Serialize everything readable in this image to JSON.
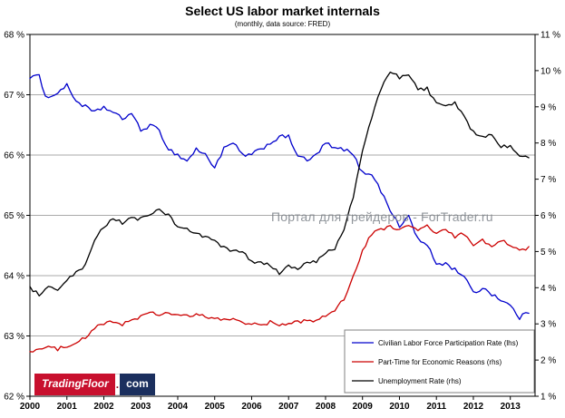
{
  "watermark": "Портал для трейдеров - ForTrader.ru",
  "logo": {
    "name": "TradingFloor",
    "dot": ".",
    "tld": "com"
  },
  "chart_data": {
    "type": "line",
    "title": "Select US labor market internals",
    "subtitle": "(monthly, data source: FRED)",
    "xlabel": "",
    "ylabel": "",
    "grid": true,
    "legend_position": "bottom-right-inside",
    "x_range": [
      2000,
      2013.67
    ],
    "x_ticks": [
      2000,
      2001,
      2002,
      2003,
      2004,
      2005,
      2006,
      2007,
      2008,
      2009,
      2010,
      2011,
      2012,
      2013
    ],
    "left_axis": {
      "min": 62,
      "max": 68,
      "step": 1,
      "suffix": " %"
    },
    "right_axis": {
      "min": 1,
      "max": 11,
      "step": 1,
      "suffix": " %"
    },
    "series": [
      {
        "name": "Civilian Labor Force Participation Rate (lhs)",
        "color": "#0000cc",
        "axis": "left",
        "points": [
          [
            2000.0,
            67.3
          ],
          [
            2000.25,
            67.3
          ],
          [
            2000.42,
            67.0
          ],
          [
            2000.58,
            66.95
          ],
          [
            2000.75,
            67.05
          ],
          [
            2001.0,
            67.15
          ],
          [
            2001.25,
            66.9
          ],
          [
            2001.5,
            66.8
          ],
          [
            2001.75,
            66.7
          ],
          [
            2002.0,
            66.8
          ],
          [
            2002.25,
            66.7
          ],
          [
            2002.5,
            66.6
          ],
          [
            2002.75,
            66.7
          ],
          [
            2003.0,
            66.4
          ],
          [
            2003.25,
            66.5
          ],
          [
            2003.5,
            66.4
          ],
          [
            2003.75,
            66.1
          ],
          [
            2004.0,
            66.0
          ],
          [
            2004.25,
            65.9
          ],
          [
            2004.5,
            66.1
          ],
          [
            2004.75,
            66.0
          ],
          [
            2005.0,
            65.8
          ],
          [
            2005.25,
            66.1
          ],
          [
            2005.5,
            66.2
          ],
          [
            2005.75,
            66.0
          ],
          [
            2006.0,
            66.0
          ],
          [
            2006.25,
            66.1
          ],
          [
            2006.5,
            66.2
          ],
          [
            2006.75,
            66.3
          ],
          [
            2007.0,
            66.3
          ],
          [
            2007.25,
            66.0
          ],
          [
            2007.5,
            65.9
          ],
          [
            2007.75,
            66.0
          ],
          [
            2008.0,
            66.2
          ],
          [
            2008.25,
            66.1
          ],
          [
            2008.5,
            66.1
          ],
          [
            2008.75,
            66.0
          ],
          [
            2009.0,
            65.7
          ],
          [
            2009.25,
            65.7
          ],
          [
            2009.5,
            65.4
          ],
          [
            2009.75,
            65.1
          ],
          [
            2010.0,
            64.8
          ],
          [
            2010.25,
            65.0
          ],
          [
            2010.5,
            64.6
          ],
          [
            2010.75,
            64.5
          ],
          [
            2011.0,
            64.2
          ],
          [
            2011.25,
            64.2
          ],
          [
            2011.5,
            64.1
          ],
          [
            2011.75,
            64.0
          ],
          [
            2012.0,
            63.7
          ],
          [
            2012.25,
            63.8
          ],
          [
            2012.5,
            63.7
          ],
          [
            2012.75,
            63.6
          ],
          [
            2013.0,
            63.5
          ],
          [
            2013.25,
            63.3
          ],
          [
            2013.5,
            63.4
          ]
        ]
      },
      {
        "name": "Part-Time for Economic Reasons (rhs)",
        "color": "#cc0000",
        "axis": "right",
        "points": [
          [
            2000.0,
            2.25
          ],
          [
            2000.25,
            2.3
          ],
          [
            2000.5,
            2.35
          ],
          [
            2000.75,
            2.3
          ],
          [
            2001.0,
            2.4
          ],
          [
            2001.25,
            2.5
          ],
          [
            2001.5,
            2.6
          ],
          [
            2001.75,
            2.9
          ],
          [
            2002.0,
            3.0
          ],
          [
            2002.25,
            3.05
          ],
          [
            2002.5,
            3.0
          ],
          [
            2002.75,
            3.1
          ],
          [
            2003.0,
            3.2
          ],
          [
            2003.25,
            3.3
          ],
          [
            2003.5,
            3.25
          ],
          [
            2003.75,
            3.3
          ],
          [
            2004.0,
            3.25
          ],
          [
            2004.25,
            3.2
          ],
          [
            2004.5,
            3.25
          ],
          [
            2004.75,
            3.2
          ],
          [
            2005.0,
            3.15
          ],
          [
            2005.25,
            3.1
          ],
          [
            2005.5,
            3.15
          ],
          [
            2005.75,
            3.05
          ],
          [
            2006.0,
            3.0
          ],
          [
            2006.25,
            2.95
          ],
          [
            2006.5,
            3.05
          ],
          [
            2006.75,
            2.95
          ],
          [
            2007.0,
            3.0
          ],
          [
            2007.25,
            3.05
          ],
          [
            2007.5,
            3.1
          ],
          [
            2007.75,
            3.1
          ],
          [
            2008.0,
            3.2
          ],
          [
            2008.25,
            3.4
          ],
          [
            2008.5,
            3.7
          ],
          [
            2008.75,
            4.3
          ],
          [
            2009.0,
            5.0
          ],
          [
            2009.25,
            5.5
          ],
          [
            2009.5,
            5.6
          ],
          [
            2009.75,
            5.7
          ],
          [
            2010.0,
            5.6
          ],
          [
            2010.25,
            5.7
          ],
          [
            2010.5,
            5.6
          ],
          [
            2010.75,
            5.7
          ],
          [
            2011.0,
            5.5
          ],
          [
            2011.25,
            5.6
          ],
          [
            2011.5,
            5.4
          ],
          [
            2011.75,
            5.5
          ],
          [
            2012.0,
            5.2
          ],
          [
            2012.25,
            5.3
          ],
          [
            2012.5,
            5.1
          ],
          [
            2012.75,
            5.3
          ],
          [
            2013.0,
            5.2
          ],
          [
            2013.25,
            5.0
          ],
          [
            2013.5,
            5.1
          ]
        ]
      },
      {
        "name": "Unemployment Rate (rhs)",
        "color": "#000000",
        "axis": "right",
        "points": [
          [
            2000.0,
            4.0
          ],
          [
            2000.25,
            3.8
          ],
          [
            2000.5,
            4.0
          ],
          [
            2000.75,
            3.9
          ],
          [
            2001.0,
            4.2
          ],
          [
            2001.25,
            4.4
          ],
          [
            2001.5,
            4.6
          ],
          [
            2001.75,
            5.3
          ],
          [
            2002.0,
            5.7
          ],
          [
            2002.25,
            5.9
          ],
          [
            2002.5,
            5.8
          ],
          [
            2002.75,
            5.9
          ],
          [
            2003.0,
            5.9
          ],
          [
            2003.25,
            6.0
          ],
          [
            2003.5,
            6.2
          ],
          [
            2003.75,
            6.0
          ],
          [
            2004.0,
            5.7
          ],
          [
            2004.25,
            5.6
          ],
          [
            2004.5,
            5.5
          ],
          [
            2004.75,
            5.4
          ],
          [
            2005.0,
            5.3
          ],
          [
            2005.25,
            5.1
          ],
          [
            2005.5,
            5.0
          ],
          [
            2005.75,
            5.0
          ],
          [
            2006.0,
            4.7
          ],
          [
            2006.25,
            4.7
          ],
          [
            2006.5,
            4.6
          ],
          [
            2006.75,
            4.4
          ],
          [
            2007.0,
            4.6
          ],
          [
            2007.25,
            4.5
          ],
          [
            2007.5,
            4.7
          ],
          [
            2007.75,
            4.7
          ],
          [
            2008.0,
            5.0
          ],
          [
            2008.25,
            5.1
          ],
          [
            2008.5,
            5.6
          ],
          [
            2008.75,
            6.5
          ],
          [
            2009.0,
            7.8
          ],
          [
            2009.25,
            8.7
          ],
          [
            2009.5,
            9.5
          ],
          [
            2009.75,
            10.0
          ],
          [
            2010.0,
            9.8
          ],
          [
            2010.25,
            9.9
          ],
          [
            2010.5,
            9.5
          ],
          [
            2010.75,
            9.5
          ],
          [
            2011.0,
            9.1
          ],
          [
            2011.25,
            9.0
          ],
          [
            2011.5,
            9.1
          ],
          [
            2011.75,
            8.7
          ],
          [
            2012.0,
            8.3
          ],
          [
            2012.25,
            8.2
          ],
          [
            2012.5,
            8.2
          ],
          [
            2012.75,
            7.9
          ],
          [
            2013.0,
            7.9
          ],
          [
            2013.25,
            7.6
          ],
          [
            2013.5,
            7.6
          ]
        ]
      }
    ]
  }
}
